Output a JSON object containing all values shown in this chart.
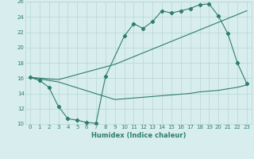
{
  "xlabel": "Humidex (Indice chaleur)",
  "xlim": [
    -0.5,
    23.5
  ],
  "ylim": [
    10,
    26
  ],
  "yticks": [
    10,
    12,
    14,
    16,
    18,
    20,
    22,
    24,
    26
  ],
  "xticks": [
    0,
    1,
    2,
    3,
    4,
    5,
    6,
    7,
    8,
    9,
    10,
    11,
    12,
    13,
    14,
    15,
    16,
    17,
    18,
    19,
    20,
    21,
    22,
    23
  ],
  "line_color": "#2e7d6e",
  "bg_color": "#d8eeee",
  "grid_color": "#b8d4d4",
  "line1_x": [
    0,
    1,
    2,
    3,
    4,
    5,
    6,
    7,
    8,
    10,
    11,
    12,
    13,
    14,
    15,
    16,
    17,
    18,
    19,
    20,
    21,
    22,
    23
  ],
  "line1_y": [
    16.1,
    15.7,
    14.8,
    12.3,
    10.7,
    10.5,
    10.2,
    10.1,
    16.2,
    21.5,
    23.1,
    22.5,
    23.4,
    24.8,
    24.5,
    24.8,
    25.1,
    25.6,
    25.7,
    24.1,
    21.8,
    18.0,
    15.3
  ],
  "line2_x": [
    0,
    3,
    9,
    10,
    11,
    12,
    13,
    14,
    15,
    16,
    17,
    18,
    19,
    20,
    21,
    22,
    23
  ],
  "line2_y": [
    16.1,
    15.8,
    17.8,
    18.3,
    18.8,
    19.3,
    19.8,
    20.3,
    20.8,
    21.3,
    21.8,
    22.3,
    22.8,
    23.3,
    23.8,
    24.3,
    24.8
  ],
  "line3_x": [
    0,
    3,
    9,
    10,
    11,
    12,
    13,
    14,
    15,
    16,
    17,
    18,
    19,
    20,
    21,
    22,
    23
  ],
  "line3_y": [
    16.1,
    15.5,
    13.2,
    13.3,
    13.4,
    13.5,
    13.6,
    13.7,
    13.8,
    13.9,
    14.0,
    14.2,
    14.3,
    14.4,
    14.6,
    14.8,
    15.1
  ]
}
